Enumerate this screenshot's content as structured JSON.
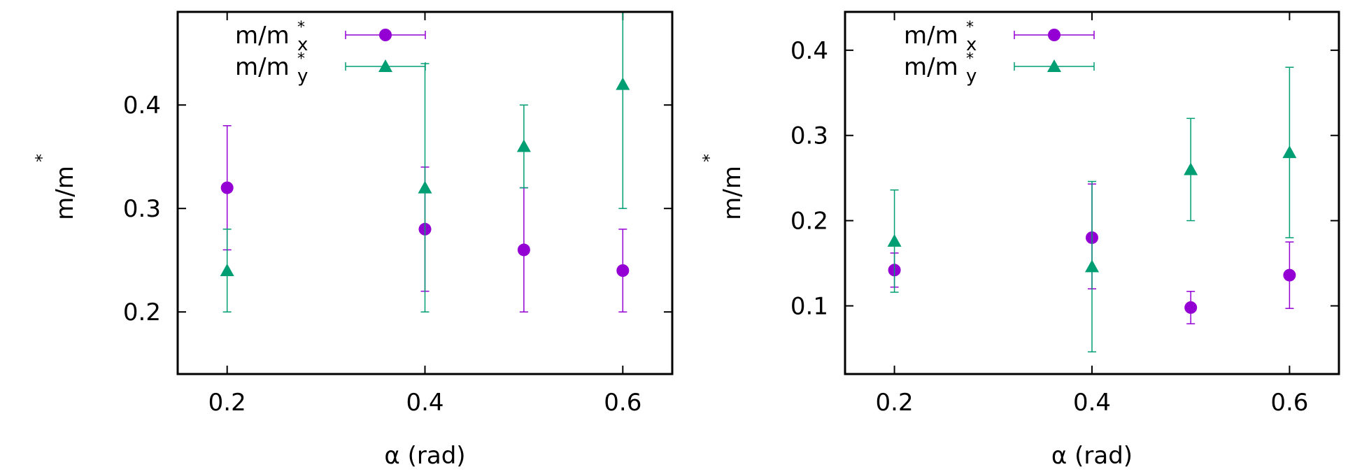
{
  "chart_data": [
    {
      "type": "scatter",
      "title": "",
      "xlabel": "α (rad)",
      "ylabel": "m/m",
      "ylabel_superscript": "*",
      "xlim": [
        0.15,
        0.65
      ],
      "ylim": [
        0.14,
        0.49
      ],
      "xticks": [
        "0.2",
        "0.4",
        "0.6"
      ],
      "yticks": [
        "0.2",
        "0.3",
        "0.4"
      ],
      "grid": false,
      "legend_position": "top-left",
      "series": [
        {
          "name": "m/m",
          "name_sup": "*",
          "name_sub": "x",
          "color": "#9400d3",
          "marker": "circle",
          "points": [
            {
              "x": 0.2,
              "y": 0.32,
              "ylow": 0.26,
              "yhigh": 0.38
            },
            {
              "x": 0.4,
              "y": 0.28,
              "ylow": 0.22,
              "yhigh": 0.34
            },
            {
              "x": 0.5,
              "y": 0.26,
              "ylow": 0.2,
              "yhigh": 0.32
            },
            {
              "x": 0.6,
              "y": 0.24,
              "ylow": 0.2,
              "yhigh": 0.28
            }
          ]
        },
        {
          "name": "m/m",
          "name_sup": "*",
          "name_sub": "y",
          "color": "#009e73",
          "marker": "triangle",
          "points": [
            {
              "x": 0.2,
              "y": 0.24,
              "ylow": 0.2,
              "yhigh": 0.28
            },
            {
              "x": 0.4,
              "y": 0.32,
              "ylow": 0.2,
              "yhigh": 0.44
            },
            {
              "x": 0.5,
              "y": 0.36,
              "ylow": 0.32,
              "yhigh": 0.4
            },
            {
              "x": 0.6,
              "y": 0.42,
              "ylow": 0.3,
              "yhigh": 0.54
            }
          ]
        }
      ]
    },
    {
      "type": "scatter",
      "title": "",
      "xlabel": "α (rad)",
      "ylabel": "m/m",
      "ylabel_superscript": "*",
      "xlim": [
        0.15,
        0.65
      ],
      "ylim": [
        0.02,
        0.445
      ],
      "xticks": [
        "0.2",
        "0.4",
        "0.6"
      ],
      "yticks": [
        "0.1",
        "0.2",
        "0.3",
        "0.4"
      ],
      "grid": false,
      "legend_position": "top-left",
      "series": [
        {
          "name": "m/m",
          "name_sup": "*",
          "name_sub": "x",
          "color": "#9400d3",
          "marker": "circle",
          "points": [
            {
              "x": 0.2,
              "y": 0.142,
              "ylow": 0.122,
              "yhigh": 0.162
            },
            {
              "x": 0.4,
              "y": 0.18,
              "ylow": 0.12,
              "yhigh": 0.243
            },
            {
              "x": 0.5,
              "y": 0.098,
              "ylow": 0.079,
              "yhigh": 0.117
            },
            {
              "x": 0.6,
              "y": 0.136,
              "ylow": 0.097,
              "yhigh": 0.175
            }
          ]
        },
        {
          "name": "m/m",
          "name_sup": "*",
          "name_sub": "y",
          "color": "#009e73",
          "marker": "triangle",
          "points": [
            {
              "x": 0.2,
              "y": 0.176,
              "ylow": 0.116,
              "yhigh": 0.236
            },
            {
              "x": 0.4,
              "y": 0.146,
              "ylow": 0.046,
              "yhigh": 0.246
            },
            {
              "x": 0.5,
              "y": 0.26,
              "ylow": 0.2,
              "yhigh": 0.32
            },
            {
              "x": 0.6,
              "y": 0.28,
              "ylow": 0.18,
              "yhigh": 0.38
            }
          ]
        }
      ]
    }
  ]
}
